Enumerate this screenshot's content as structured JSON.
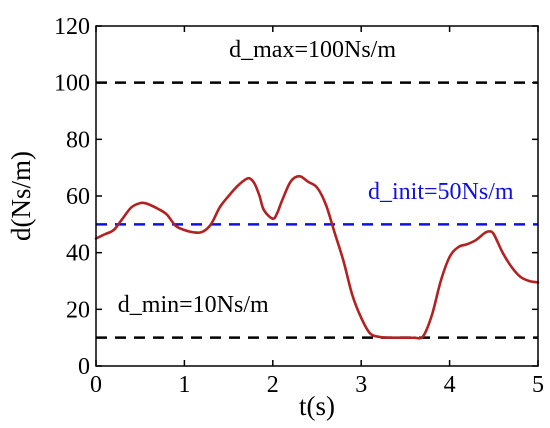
{
  "chart_data": {
    "type": "line",
    "xlabel": "t(s)",
    "ylabel": "d(Ns/m)",
    "xlim": [
      0,
      5
    ],
    "ylim": [
      0,
      120
    ],
    "xticks": [
      0,
      1,
      2,
      3,
      4,
      5
    ],
    "yticks": [
      0,
      20,
      40,
      60,
      80,
      100,
      120
    ],
    "grid": false,
    "series": [
      {
        "style": "solid",
        "color": "#b22222",
        "x": [
          0,
          0.1,
          0.2,
          0.3,
          0.4,
          0.5,
          0.55,
          0.6,
          0.7,
          0.8,
          0.9,
          1.0,
          1.1,
          1.2,
          1.3,
          1.4,
          1.5,
          1.6,
          1.7,
          1.75,
          1.8,
          1.85,
          1.9,
          2.0,
          2.05,
          2.1,
          2.2,
          2.3,
          2.4,
          2.5,
          2.6,
          2.7,
          2.8,
          2.9,
          3.0,
          3.1,
          3.2,
          3.3,
          3.4,
          3.5,
          3.6,
          3.7,
          3.8,
          3.9,
          4.0,
          4.1,
          4.2,
          4.3,
          4.4,
          4.45,
          4.5,
          4.6,
          4.7,
          4.8,
          4.9,
          5.0
        ],
        "y": [
          45,
          46.5,
          48,
          52,
          56,
          57.5,
          57.5,
          57,
          55.5,
          53.5,
          49.5,
          48,
          47.2,
          47.3,
          50,
          56,
          60,
          63.5,
          66,
          66,
          64,
          60,
          55,
          52,
          54,
          58,
          65,
          67,
          65,
          63,
          57,
          47,
          37,
          25,
          17,
          11.5,
          10.3,
          10,
          10,
          10,
          10,
          10.5,
          18,
          30,
          38.5,
          42,
          43,
          44.5,
          47,
          47.5,
          46.5,
          40,
          35,
          31.5,
          30,
          29.5
        ]
      },
      {
        "style": "dashed",
        "color": "#000000",
        "y_const": 100
      },
      {
        "style": "dashed",
        "color": "#1010e0",
        "y_const": 50
      },
      {
        "style": "dashed",
        "color": "#000000",
        "y_const": 10
      }
    ],
    "annotations": [
      {
        "text": "d_max=100Ns/m",
        "x": 2.45,
        "y": 109,
        "color": "#000000"
      },
      {
        "text": "d_init=50Ns/m",
        "x": 3.9,
        "y": 59,
        "color": "#1010e0"
      },
      {
        "text": "d_min=10Ns/m",
        "x": 1.1,
        "y": 19,
        "color": "#000000"
      }
    ]
  }
}
